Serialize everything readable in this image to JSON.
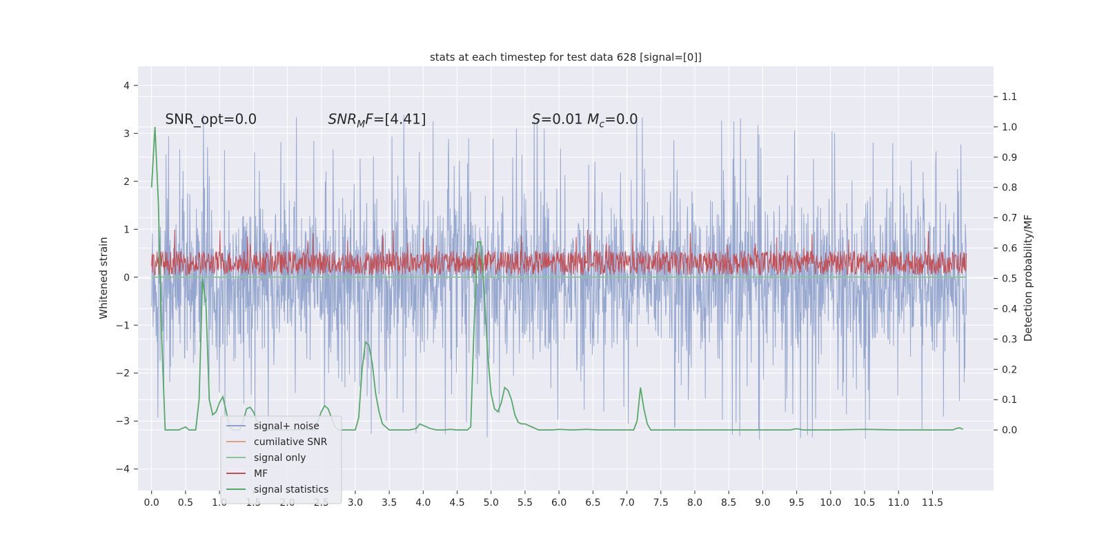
{
  "chart_data": {
    "type": "line",
    "title": "stats at each timestep for test data 628 [signal=[0]]",
    "xlabel": "",
    "ylabel": "Whitened strain",
    "ylabel_right": "Detection probability/MF",
    "xlim": [
      -0.2,
      12.4
    ],
    "ylim": [
      -4.45,
      4.4
    ],
    "ylim_right": [
      -0.2,
      1.2
    ],
    "x_ticks": [
      0.0,
      0.5,
      1.0,
      1.5,
      2.0,
      2.5,
      3.0,
      3.5,
      4.0,
      4.5,
      5.0,
      5.5,
      6.0,
      6.5,
      7.0,
      7.5,
      8.0,
      8.5,
      9.0,
      9.5,
      10.0,
      10.5,
      11.0,
      11.5
    ],
    "x_tick_labels": [
      "0.0",
      "0.5",
      "1.0",
      "1.5",
      "2.0",
      "2.5",
      "3.0",
      "3.5",
      "4.0",
      "4.5",
      "5.0",
      "5.5",
      "6.0",
      "6.5",
      "7.0",
      "7.5",
      "8.0",
      "8.5",
      "9.0",
      "9.5",
      "10.0",
      "10.5",
      "11.0",
      "11.5"
    ],
    "y_ticks": [
      -4,
      -3,
      -2,
      -1,
      0,
      1,
      2,
      3,
      4
    ],
    "y_tick_labels": [
      "−4",
      "−3",
      "−2",
      "−1",
      "0",
      "1",
      "2",
      "3",
      "4"
    ],
    "y_ticks_right": [
      0.0,
      0.1,
      0.2,
      0.3,
      0.4,
      0.5,
      0.6,
      0.7,
      0.8,
      0.9,
      1.0,
      1.1
    ],
    "y_tick_labels_right": [
      "0.0",
      "0.1",
      "0.2",
      "0.3",
      "0.4",
      "0.5",
      "0.6",
      "0.7",
      "0.8",
      "0.9",
      "1.0",
      "1.1"
    ],
    "grid": true,
    "legend_position": "lower-left",
    "annotations": [
      {
        "text": "SNR_opt=0.0",
        "x": 0.2,
        "y": 3.2
      },
      {
        "text": "SNR_MF=[4.41]",
        "x": 2.6,
        "y": 3.2
      },
      {
        "text": "S=0.01   M_c=0.0",
        "x": 5.6,
        "y": 3.2
      }
    ],
    "legend": [
      {
        "label": "signal+ noise",
        "color": "#8da0cb"
      },
      {
        "label": "cumilative SNR",
        "color": "#dd9f7e"
      },
      {
        "label": "signal only",
        "color": "#8cc49a"
      },
      {
        "label": "MF",
        "color": "#c44e52"
      },
      {
        "label": "signal statistics",
        "color": "#55a868"
      }
    ],
    "series": [
      {
        "name": "signal+ noise",
        "axis": "left",
        "color": "#8da0cb",
        "x_range": [
          0.0,
          12.0
        ],
        "envelope_upper": 1.2,
        "envelope_lower": -1.3,
        "peak_upper_max": 4.0,
        "peak_lower_min": -4.1
      },
      {
        "name": "signal only",
        "axis": "left",
        "color": "#8cc49a",
        "x": [
          0.0,
          12.0
        ],
        "y": [
          0.0,
          0.0
        ]
      },
      {
        "name": "MF",
        "axis": "left",
        "color": "#c44e52",
        "x_range": [
          0.0,
          12.0
        ],
        "band_lower": 0.05,
        "band_upper": 0.55,
        "peak_max": 1.0
      },
      {
        "name": "signal statistics",
        "axis": "right",
        "color": "#55a868",
        "x": [
          0.0,
          0.05,
          0.1,
          0.15,
          0.2,
          0.25,
          0.3,
          0.35,
          0.4,
          0.45,
          0.5,
          0.55,
          0.6,
          0.65,
          0.7,
          0.75,
          0.8,
          0.85,
          0.9,
          0.95,
          1.0,
          1.05,
          1.1,
          1.15,
          1.2,
          1.25,
          1.3,
          1.35,
          1.4,
          1.45,
          1.5,
          1.55,
          1.6,
          1.65,
          1.7,
          1.75,
          1.8,
          1.85,
          1.9,
          1.95,
          2.0,
          2.1,
          2.2,
          2.3,
          2.4,
          2.5,
          2.55,
          2.6,
          2.65,
          2.7,
          2.75,
          2.8,
          2.9,
          3.0,
          3.05,
          3.1,
          3.15,
          3.2,
          3.25,
          3.3,
          3.35,
          3.4,
          3.45,
          3.5,
          3.6,
          3.7,
          3.8,
          3.9,
          3.95,
          4.0,
          4.1,
          4.2,
          4.3,
          4.4,
          4.5,
          4.6,
          4.65,
          4.7,
          4.75,
          4.8,
          4.85,
          4.9,
          4.95,
          5.0,
          5.05,
          5.1,
          5.15,
          5.2,
          5.25,
          5.3,
          5.35,
          5.4,
          5.45,
          5.5,
          5.55,
          5.6,
          5.65,
          5.7,
          5.8,
          5.9,
          6.0,
          6.2,
          6.4,
          6.6,
          6.8,
          7.0,
          7.1,
          7.15,
          7.2,
          7.25,
          7.3,
          7.35,
          7.4,
          7.5,
          8.0,
          8.5,
          9.0,
          9.4,
          9.5,
          9.6,
          10.0,
          10.5,
          11.0,
          11.1,
          11.2,
          11.5,
          11.8,
          11.85,
          11.9,
          11.95
        ],
        "y": [
          0.8,
          1.0,
          0.75,
          0.3,
          0.0,
          0.0,
          0.0,
          0.0,
          0.0,
          0.005,
          0.01,
          0.0,
          0.0,
          0.0,
          0.1,
          0.5,
          0.42,
          0.1,
          0.05,
          0.06,
          0.09,
          0.11,
          0.06,
          0.01,
          0.0,
          0.0,
          0.0,
          0.03,
          0.07,
          0.075,
          0.06,
          0.03,
          0.01,
          0.0,
          0.0,
          0.0,
          0.0,
          0.0,
          0.0,
          0.0,
          0.0,
          0.0,
          0.0,
          0.0,
          0.0,
          0.06,
          0.08,
          0.07,
          0.04,
          0.01,
          0.0,
          0.0,
          0.0,
          0.0,
          0.04,
          0.2,
          0.29,
          0.28,
          0.22,
          0.12,
          0.06,
          0.02,
          0.01,
          0.0,
          0.0,
          0.0,
          0.0,
          0.005,
          0.02,
          0.015,
          0.005,
          0.0,
          0.0,
          0.002,
          0.0,
          0.0,
          0.0,
          0.01,
          0.35,
          0.62,
          0.62,
          0.45,
          0.25,
          0.12,
          0.07,
          0.06,
          0.09,
          0.14,
          0.13,
          0.1,
          0.05,
          0.025,
          0.02,
          0.02,
          0.015,
          0.01,
          0.005,
          0.0,
          0.0,
          0.0,
          0.002,
          0.0,
          0.002,
          0.0,
          0.0,
          0.0,
          0.0,
          0.03,
          0.14,
          0.07,
          0.02,
          0.0,
          0.0,
          0.0,
          0.0,
          0.0,
          0.0,
          0.0,
          0.004,
          0.0,
          0.0,
          0.002,
          0.0,
          0.0,
          0.0,
          0.0,
          0.0,
          0.005,
          0.007,
          0.002
        ]
      }
    ]
  }
}
